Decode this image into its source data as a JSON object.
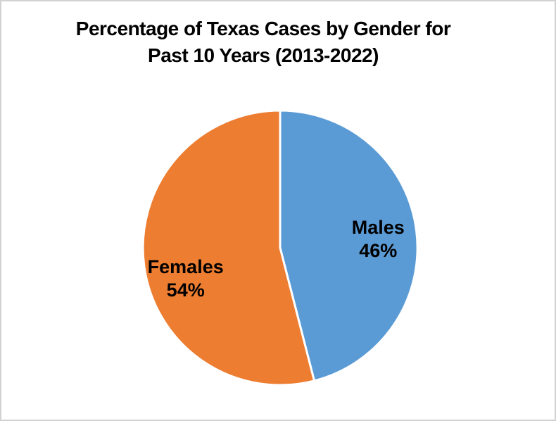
{
  "window": {
    "background": "#FFFFFF",
    "border_color": "#D2D2D2"
  },
  "header": {
    "line1": "Percentage of Texas Cases by Gender for",
    "line2": "Past 10 Years (2013-2022)"
  },
  "chart_data": {
    "type": "pie",
    "title": "Percentage of Texas Cases by Gender for Past 10 Years (2013-2022)",
    "unit": "%",
    "categories": [
      "Males",
      "Females"
    ],
    "values": [
      46,
      54
    ],
    "slices": [
      {
        "name": "Males",
        "value": 46,
        "pct_label": "46%",
        "color": "#5B9BD5"
      },
      {
        "name": "Females",
        "value": 54,
        "pct_label": "54%",
        "color": "#ED7D31"
      }
    ],
    "start_angle_deg": 0,
    "direction": "clockwise",
    "slice_border_color": "#FFFFFF",
    "legend": "none",
    "label_style": "category name and percentage inside slice",
    "label_color": "#000000"
  }
}
